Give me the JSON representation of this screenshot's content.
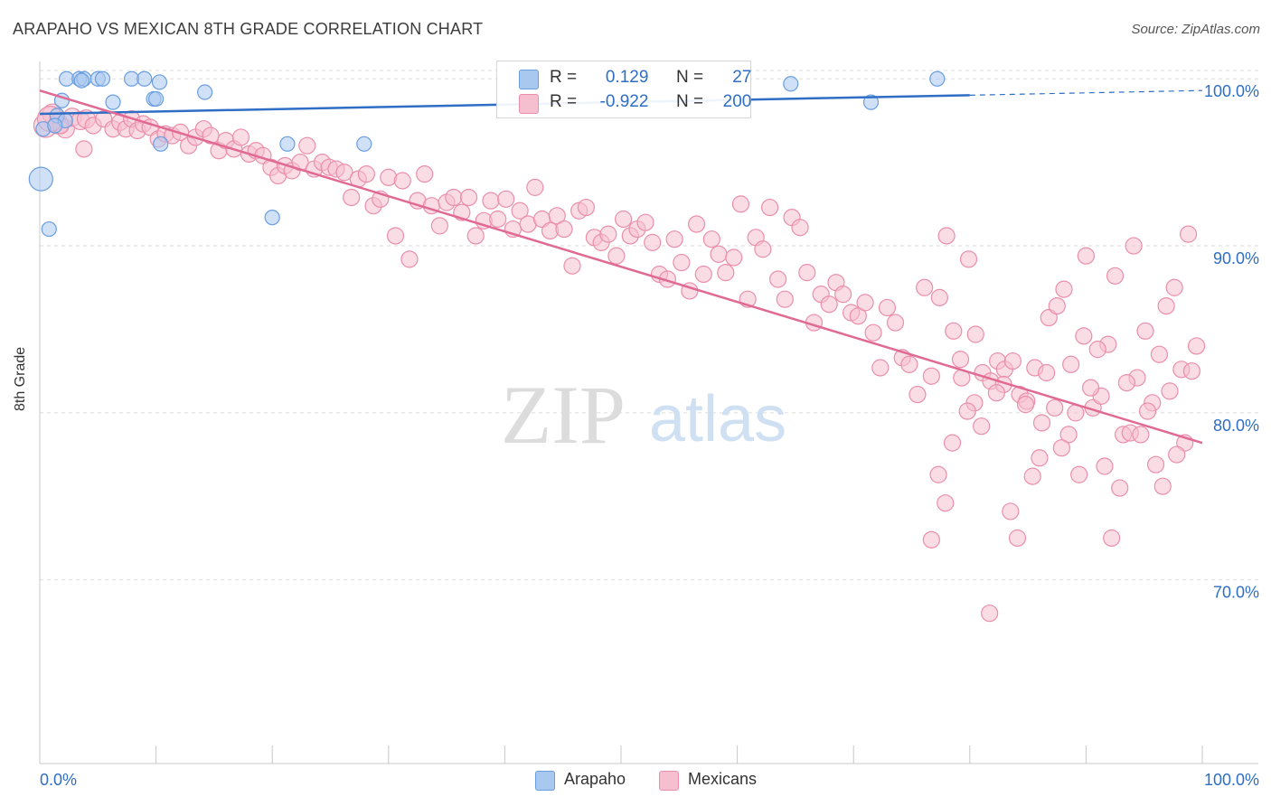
{
  "title": "ARAPAHO VS MEXICAN 8TH GRADE CORRELATION CHART",
  "source": "Source: ZipAtlas.com",
  "watermark": {
    "zip": "ZIP",
    "atlas": "atlas"
  },
  "colors": {
    "arapaho_fill": "#a9c8f0",
    "arapaho_stroke": "#6a9ee0",
    "arapaho_line": "#2f6ec4",
    "mexicans_fill": "#f6bfd0",
    "mexicans_stroke": "#ea8fab",
    "mexicans_line": "#e06a93",
    "axis_label": "#2f6ec4",
    "grid": "#dedede"
  },
  "legend": {
    "arapaho": {
      "r_label": "R =",
      "r_value": "0.129",
      "n_label": "N =",
      "n_value": "27"
    },
    "mexicans": {
      "r_label": "R =",
      "r_value": "-0.922",
      "n_label": "N =",
      "n_value": "200"
    }
  },
  "bottom_legend": {
    "arapaho": "Arapaho",
    "mexicans": "Mexicans"
  },
  "chart_data": {
    "type": "scatter",
    "title": "ARAPAHO VS MEXICAN 8TH GRADE CORRELATION CHART",
    "xlabel": "",
    "ylabel": "8th Grade",
    "xlim": [
      0,
      100
    ],
    "ylim": [
      59,
      100.5
    ],
    "x_tick_labels": [
      "0.0%",
      "100.0%"
    ],
    "y_ticks": [
      {
        "value": 100,
        "label": "100.0%"
      },
      {
        "value": 90,
        "label": "90.0%"
      },
      {
        "value": 80,
        "label": "80.0%"
      },
      {
        "value": 70,
        "label": "70.0%"
      }
    ],
    "series": [
      {
        "name": "Arapaho",
        "trend": {
          "x0": 0,
          "y0": 97.9,
          "x1": 100,
          "y1": 99.3,
          "solid_until": 80
        },
        "points": [
          [
            2.3,
            100
          ],
          [
            3.4,
            100
          ],
          [
            3.8,
            100
          ],
          [
            5.0,
            100
          ],
          [
            5.4,
            100
          ],
          [
            7.9,
            100
          ],
          [
            9.0,
            100
          ],
          [
            10.3,
            99.8
          ],
          [
            14.2,
            99.2
          ],
          [
            1.9,
            98.7
          ],
          [
            6.3,
            98.6
          ],
          [
            9.8,
            98.8
          ],
          [
            10.0,
            98.8
          ],
          [
            64.6,
            99.7
          ],
          [
            77.2,
            100
          ],
          [
            71.5,
            98.6
          ],
          [
            1.5,
            97.8
          ],
          [
            0.3,
            97.0
          ],
          [
            2.2,
            97.5
          ],
          [
            10.4,
            96.1
          ],
          [
            21.3,
            96.1
          ],
          [
            27.9,
            96.1
          ],
          [
            0.1,
            94.0
          ],
          [
            0.8,
            91.0
          ],
          [
            20.0,
            91.7
          ],
          [
            3.6,
            99.9
          ],
          [
            1.3,
            97.2
          ]
        ],
        "sizes": [
          8,
          8,
          8,
          8,
          8,
          8,
          8,
          8,
          8,
          8,
          8,
          8,
          8,
          8,
          8,
          8,
          8,
          8,
          8,
          8,
          8,
          8,
          13,
          8,
          8,
          8,
          8
        ]
      },
      {
        "name": "Mexicans",
        "trend": {
          "x0": 0,
          "y0": 99.3,
          "x1": 100,
          "y1": 78.2
        },
        "points": [
          [
            0.5,
            97.2
          ],
          [
            1.1,
            97.9
          ],
          [
            1.6,
            97.3
          ],
          [
            2.2,
            97.0
          ],
          [
            2.8,
            97.7
          ],
          [
            3.5,
            97.5
          ],
          [
            4.0,
            97.6
          ],
          [
            4.6,
            97.2
          ],
          [
            5.5,
            97.6
          ],
          [
            6.3,
            97.0
          ],
          [
            6.9,
            97.4
          ],
          [
            7.4,
            97.0
          ],
          [
            7.9,
            97.6
          ],
          [
            8.4,
            96.9
          ],
          [
            8.9,
            97.3
          ],
          [
            9.5,
            97.1
          ],
          [
            10.2,
            96.4
          ],
          [
            10.8,
            96.7
          ],
          [
            11.4,
            96.6
          ],
          [
            12.1,
            96.8
          ],
          [
            12.8,
            96.0
          ],
          [
            13.4,
            96.5
          ],
          [
            14.1,
            97.0
          ],
          [
            14.7,
            96.6
          ],
          [
            15.4,
            95.7
          ],
          [
            16.0,
            96.3
          ],
          [
            16.7,
            95.8
          ],
          [
            17.3,
            96.5
          ],
          [
            18.0,
            95.5
          ],
          [
            18.6,
            95.7
          ],
          [
            19.2,
            95.4
          ],
          [
            19.9,
            94.7
          ],
          [
            20.5,
            94.2
          ],
          [
            21.1,
            94.8
          ],
          [
            21.7,
            94.5
          ],
          [
            22.4,
            95.0
          ],
          [
            23.0,
            96.0
          ],
          [
            23.6,
            94.6
          ],
          [
            24.3,
            95.0
          ],
          [
            24.9,
            94.7
          ],
          [
            25.5,
            94.6
          ],
          [
            26.2,
            94.4
          ],
          [
            26.8,
            92.9
          ],
          [
            27.4,
            94.0
          ],
          [
            28.1,
            94.3
          ],
          [
            28.7,
            92.4
          ],
          [
            29.3,
            92.8
          ],
          [
            30.0,
            94.1
          ],
          [
            30.6,
            90.6
          ],
          [
            31.2,
            93.9
          ],
          [
            31.8,
            89.2
          ],
          [
            32.5,
            92.7
          ],
          [
            33.1,
            94.3
          ],
          [
            33.7,
            92.4
          ],
          [
            34.4,
            91.2
          ],
          [
            35.0,
            92.6
          ],
          [
            35.6,
            92.9
          ],
          [
            36.3,
            92.0
          ],
          [
            36.9,
            92.9
          ],
          [
            37.5,
            90.6
          ],
          [
            38.2,
            91.5
          ],
          [
            38.8,
            92.7
          ],
          [
            39.4,
            91.6
          ],
          [
            40.1,
            92.8
          ],
          [
            40.7,
            91.0
          ],
          [
            41.3,
            92.1
          ],
          [
            42.0,
            91.3
          ],
          [
            42.6,
            93.5
          ],
          [
            43.2,
            91.6
          ],
          [
            43.9,
            90.9
          ],
          [
            44.5,
            91.8
          ],
          [
            45.1,
            91.0
          ],
          [
            45.8,
            88.8
          ],
          [
            46.4,
            92.1
          ],
          [
            47.0,
            92.3
          ],
          [
            47.7,
            90.5
          ],
          [
            48.3,
            90.2
          ],
          [
            48.9,
            90.7
          ],
          [
            49.6,
            89.4
          ],
          [
            50.2,
            91.6
          ],
          [
            50.8,
            90.6
          ],
          [
            51.4,
            91.0
          ],
          [
            52.1,
            91.4
          ],
          [
            52.7,
            90.2
          ],
          [
            53.3,
            88.3
          ],
          [
            54.0,
            88.0
          ],
          [
            54.6,
            90.4
          ],
          [
            55.2,
            89.0
          ],
          [
            55.9,
            87.3
          ],
          [
            56.5,
            91.3
          ],
          [
            57.1,
            88.3
          ],
          [
            57.8,
            90.4
          ],
          [
            58.4,
            89.5
          ],
          [
            59.0,
            88.4
          ],
          [
            59.7,
            89.3
          ],
          [
            60.3,
            92.5
          ],
          [
            60.9,
            86.8
          ],
          [
            61.6,
            90.5
          ],
          [
            62.2,
            89.8
          ],
          [
            62.8,
            92.3
          ],
          [
            63.5,
            88.0
          ],
          [
            64.1,
            86.8
          ],
          [
            64.7,
            91.7
          ],
          [
            65.4,
            91.1
          ],
          [
            66.0,
            88.4
          ],
          [
            66.6,
            85.4
          ],
          [
            67.2,
            87.1
          ],
          [
            67.9,
            86.5
          ],
          [
            68.5,
            87.8
          ],
          [
            69.1,
            87.1
          ],
          [
            69.8,
            86.0
          ],
          [
            70.4,
            85.8
          ],
          [
            71.0,
            86.6
          ],
          [
            71.7,
            84.8
          ],
          [
            72.3,
            82.7
          ],
          [
            72.9,
            86.3
          ],
          [
            73.6,
            85.4
          ],
          [
            74.2,
            83.3
          ],
          [
            74.8,
            82.9
          ],
          [
            75.5,
            81.1
          ],
          [
            76.1,
            87.5
          ],
          [
            76.7,
            82.2
          ],
          [
            77.4,
            86.9
          ],
          [
            78.0,
            90.6
          ],
          [
            78.6,
            84.9
          ],
          [
            79.3,
            82.1
          ],
          [
            79.9,
            89.2
          ],
          [
            80.5,
            84.7
          ],
          [
            81.1,
            82.4
          ],
          [
            81.8,
            81.9
          ],
          [
            82.4,
            83.1
          ],
          [
            83.0,
            82.6
          ],
          [
            83.7,
            83.1
          ],
          [
            84.3,
            81.1
          ],
          [
            84.9,
            80.7
          ],
          [
            85.6,
            82.7
          ],
          [
            86.2,
            79.4
          ],
          [
            86.8,
            85.7
          ],
          [
            87.5,
            86.4
          ],
          [
            88.1,
            87.4
          ],
          [
            88.7,
            82.9
          ],
          [
            89.4,
            76.3
          ],
          [
            90.0,
            89.4
          ],
          [
            90.6,
            80.3
          ],
          [
            91.3,
            81.0
          ],
          [
            91.9,
            84.1
          ],
          [
            92.5,
            88.2
          ],
          [
            93.2,
            78.7
          ],
          [
            93.8,
            78.8
          ],
          [
            94.4,
            82.1
          ],
          [
            95.1,
            84.9
          ],
          [
            95.7,
            80.6
          ],
          [
            96.3,
            83.5
          ],
          [
            96.9,
            86.4
          ],
          [
            97.6,
            87.5
          ],
          [
            98.2,
            82.6
          ],
          [
            98.8,
            90.7
          ],
          [
            99.5,
            84.0
          ],
          [
            99.1,
            82.5
          ],
          [
            98.5,
            78.2
          ],
          [
            97.8,
            77.5
          ],
          [
            97.2,
            81.3
          ],
          [
            96.6,
            75.6
          ],
          [
            96.0,
            76.9
          ],
          [
            95.3,
            80.1
          ],
          [
            94.7,
            78.7
          ],
          [
            94.1,
            90.0
          ],
          [
            93.5,
            81.8
          ],
          [
            92.9,
            75.5
          ],
          [
            92.2,
            72.5
          ],
          [
            91.6,
            76.8
          ],
          [
            91.0,
            83.8
          ],
          [
            90.4,
            81.5
          ],
          [
            89.8,
            84.6
          ],
          [
            89.1,
            80.0
          ],
          [
            88.5,
            78.7
          ],
          [
            87.9,
            77.9
          ],
          [
            87.3,
            80.3
          ],
          [
            86.6,
            82.4
          ],
          [
            86.0,
            77.3
          ],
          [
            85.4,
            76.2
          ],
          [
            84.8,
            80.5
          ],
          [
            84.1,
            72.5
          ],
          [
            83.5,
            74.1
          ],
          [
            82.9,
            81.7
          ],
          [
            82.3,
            81.2
          ],
          [
            81.7,
            68.0
          ],
          [
            81.0,
            79.2
          ],
          [
            80.4,
            80.6
          ],
          [
            79.8,
            80.1
          ],
          [
            79.2,
            83.2
          ],
          [
            78.5,
            78.2
          ],
          [
            77.9,
            74.6
          ],
          [
            77.3,
            76.3
          ],
          [
            76.7,
            72.4
          ],
          [
            3.8,
            95.8
          ],
          [
            1.8,
            97.2
          ],
          [
            0.9,
            97.6
          ]
        ],
        "sizes": [
          13,
          11,
          11,
          10,
          10,
          10,
          10,
          9,
          9,
          9,
          9,
          9,
          9,
          9,
          9,
          9,
          9,
          9,
          9,
          9,
          9,
          9,
          9,
          9,
          9,
          9,
          9,
          9,
          9,
          9,
          9,
          9,
          9,
          9,
          9,
          9,
          9,
          9,
          9,
          9,
          9,
          9,
          9,
          9,
          9,
          9,
          9,
          9,
          9,
          9,
          9,
          9,
          9,
          9,
          9,
          9,
          9,
          9,
          9,
          9,
          9,
          9,
          9,
          9,
          9,
          9,
          9,
          9,
          9,
          9,
          9,
          9,
          9,
          9,
          9,
          9,
          9,
          9,
          9,
          9,
          9,
          9,
          9,
          9,
          9,
          9,
          9,
          9,
          9,
          9,
          9,
          9,
          9,
          9,
          9,
          9,
          9,
          9,
          9,
          9,
          9,
          9,
          9,
          9,
          9,
          9,
          9,
          9,
          9,
          9,
          9,
          9,
          9,
          9,
          9,
          9,
          9,
          9,
          9,
          9,
          9,
          9,
          9,
          9,
          9,
          9,
          9,
          9,
          9,
          9,
          9,
          9,
          9,
          9,
          9,
          9,
          9,
          9,
          9,
          9,
          9,
          9,
          9,
          9,
          9,
          9,
          9,
          9,
          9,
          9,
          9,
          9,
          9,
          9,
          9,
          9,
          9,
          9,
          9,
          9,
          9,
          9,
          9,
          9,
          9,
          9,
          9,
          9,
          9,
          9,
          9,
          9,
          9,
          9,
          9,
          9,
          9,
          9,
          9,
          9,
          9,
          9,
          9,
          9,
          9,
          9,
          9,
          9,
          9,
          9,
          9,
          9,
          9,
          9,
          9,
          9,
          9,
          14,
          16,
          12
        ]
      }
    ]
  }
}
